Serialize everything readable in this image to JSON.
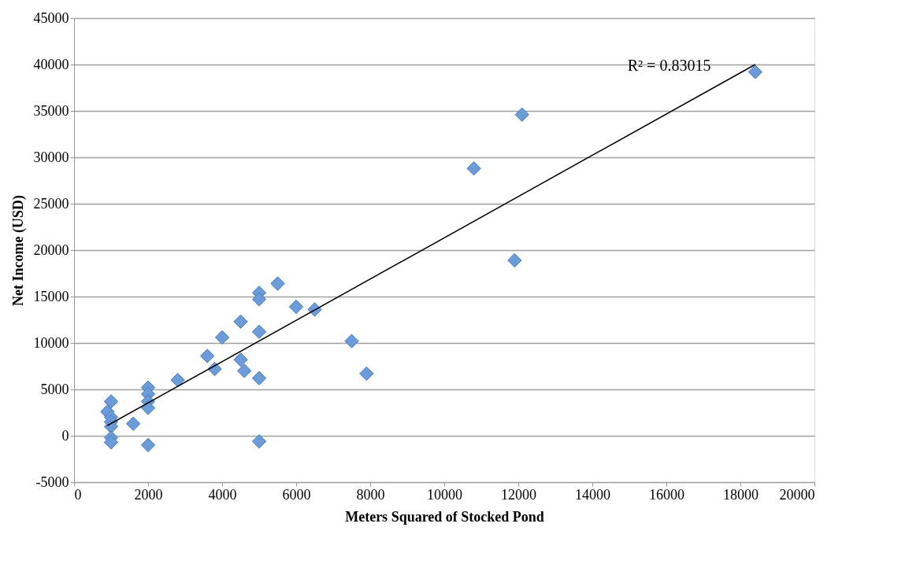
{
  "chart_data": {
    "type": "scatter",
    "xlabel": "Meters Squared of Stocked Pond",
    "ylabel": "Net Income (USD)",
    "xlim": [
      0,
      20000
    ],
    "xticks": [
      0,
      2000,
      4000,
      6000,
      8000,
      10000,
      12000,
      14000,
      16000,
      18000,
      20000
    ],
    "ylim": [
      -5000,
      45000
    ],
    "yticks": [
      -5000,
      0,
      5000,
      10000,
      15000,
      20000,
      25000,
      30000,
      35000,
      40000,
      45000
    ],
    "grid": "y",
    "series": [
      {
        "color": "#6b9bd8",
        "marker": "diamond",
        "x": [
          1000,
          900,
          1000,
          1000,
          1000,
          1000,
          1000,
          1600,
          2000,
          2000,
          2000,
          2000,
          2000,
          2800,
          3600,
          3800,
          4000,
          4500,
          4500,
          4600,
          5000,
          5000,
          5500,
          5000,
          5000,
          5000,
          6000,
          6500,
          7500,
          7900,
          10800,
          12100,
          11900,
          18400
        ],
        "values": [
          3700,
          2600,
          2000,
          1500,
          1000,
          -200,
          -700,
          1300,
          5200,
          4500,
          3700,
          3000,
          -1000,
          6000,
          8600,
          7200,
          10600,
          12300,
          8200,
          7000,
          15400,
          14700,
          16400,
          11200,
          6200,
          -600,
          13900,
          13600,
          10200,
          6700,
          28800,
          34600,
          18900,
          39200
        ]
      },
      {
        "type": "line",
        "color": "#000000",
        "x": [
          900,
          18400
        ],
        "values": [
          1100,
          40000
        ]
      }
    ],
    "annotations": [
      "R² = 0.83015"
    ]
  }
}
